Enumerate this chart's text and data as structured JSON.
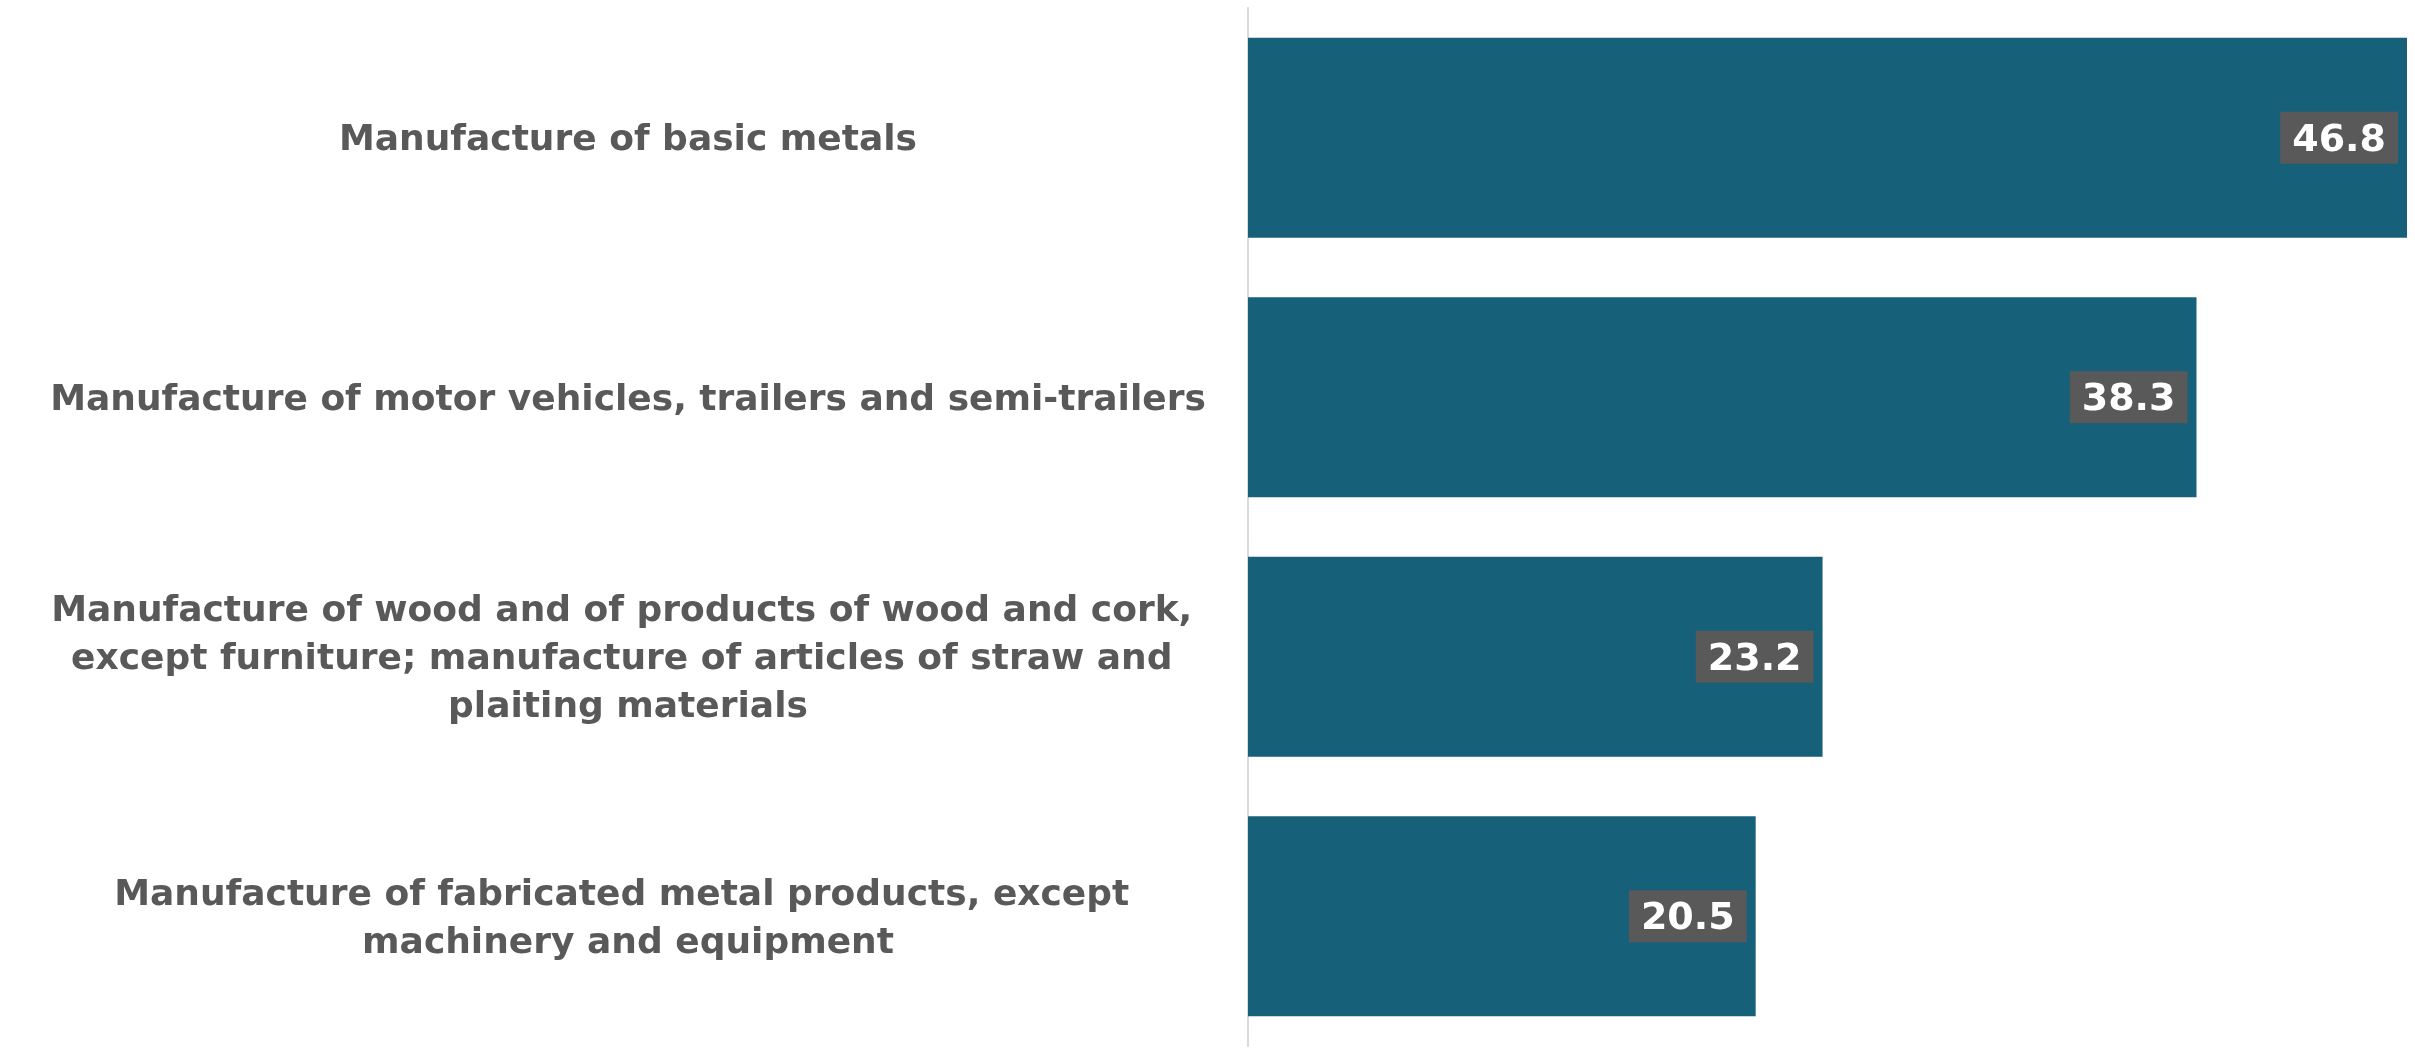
{
  "chart_data": {
    "type": "bar",
    "orientation": "horizontal",
    "categories": [
      "Manufacture of basic metals",
      "Manufacture of motor vehicles, trailers and semi-trailers",
      "Manufacture of wood and of products of wood and cork, except furniture; manufacture of articles of straw and plaiting materials",
      "Manufacture of fabricated metal products, except machinery and equipment"
    ],
    "values": [
      46.8,
      38.3,
      23.2,
      20.5
    ],
    "color": "#17607a",
    "data_labels": true
  }
}
